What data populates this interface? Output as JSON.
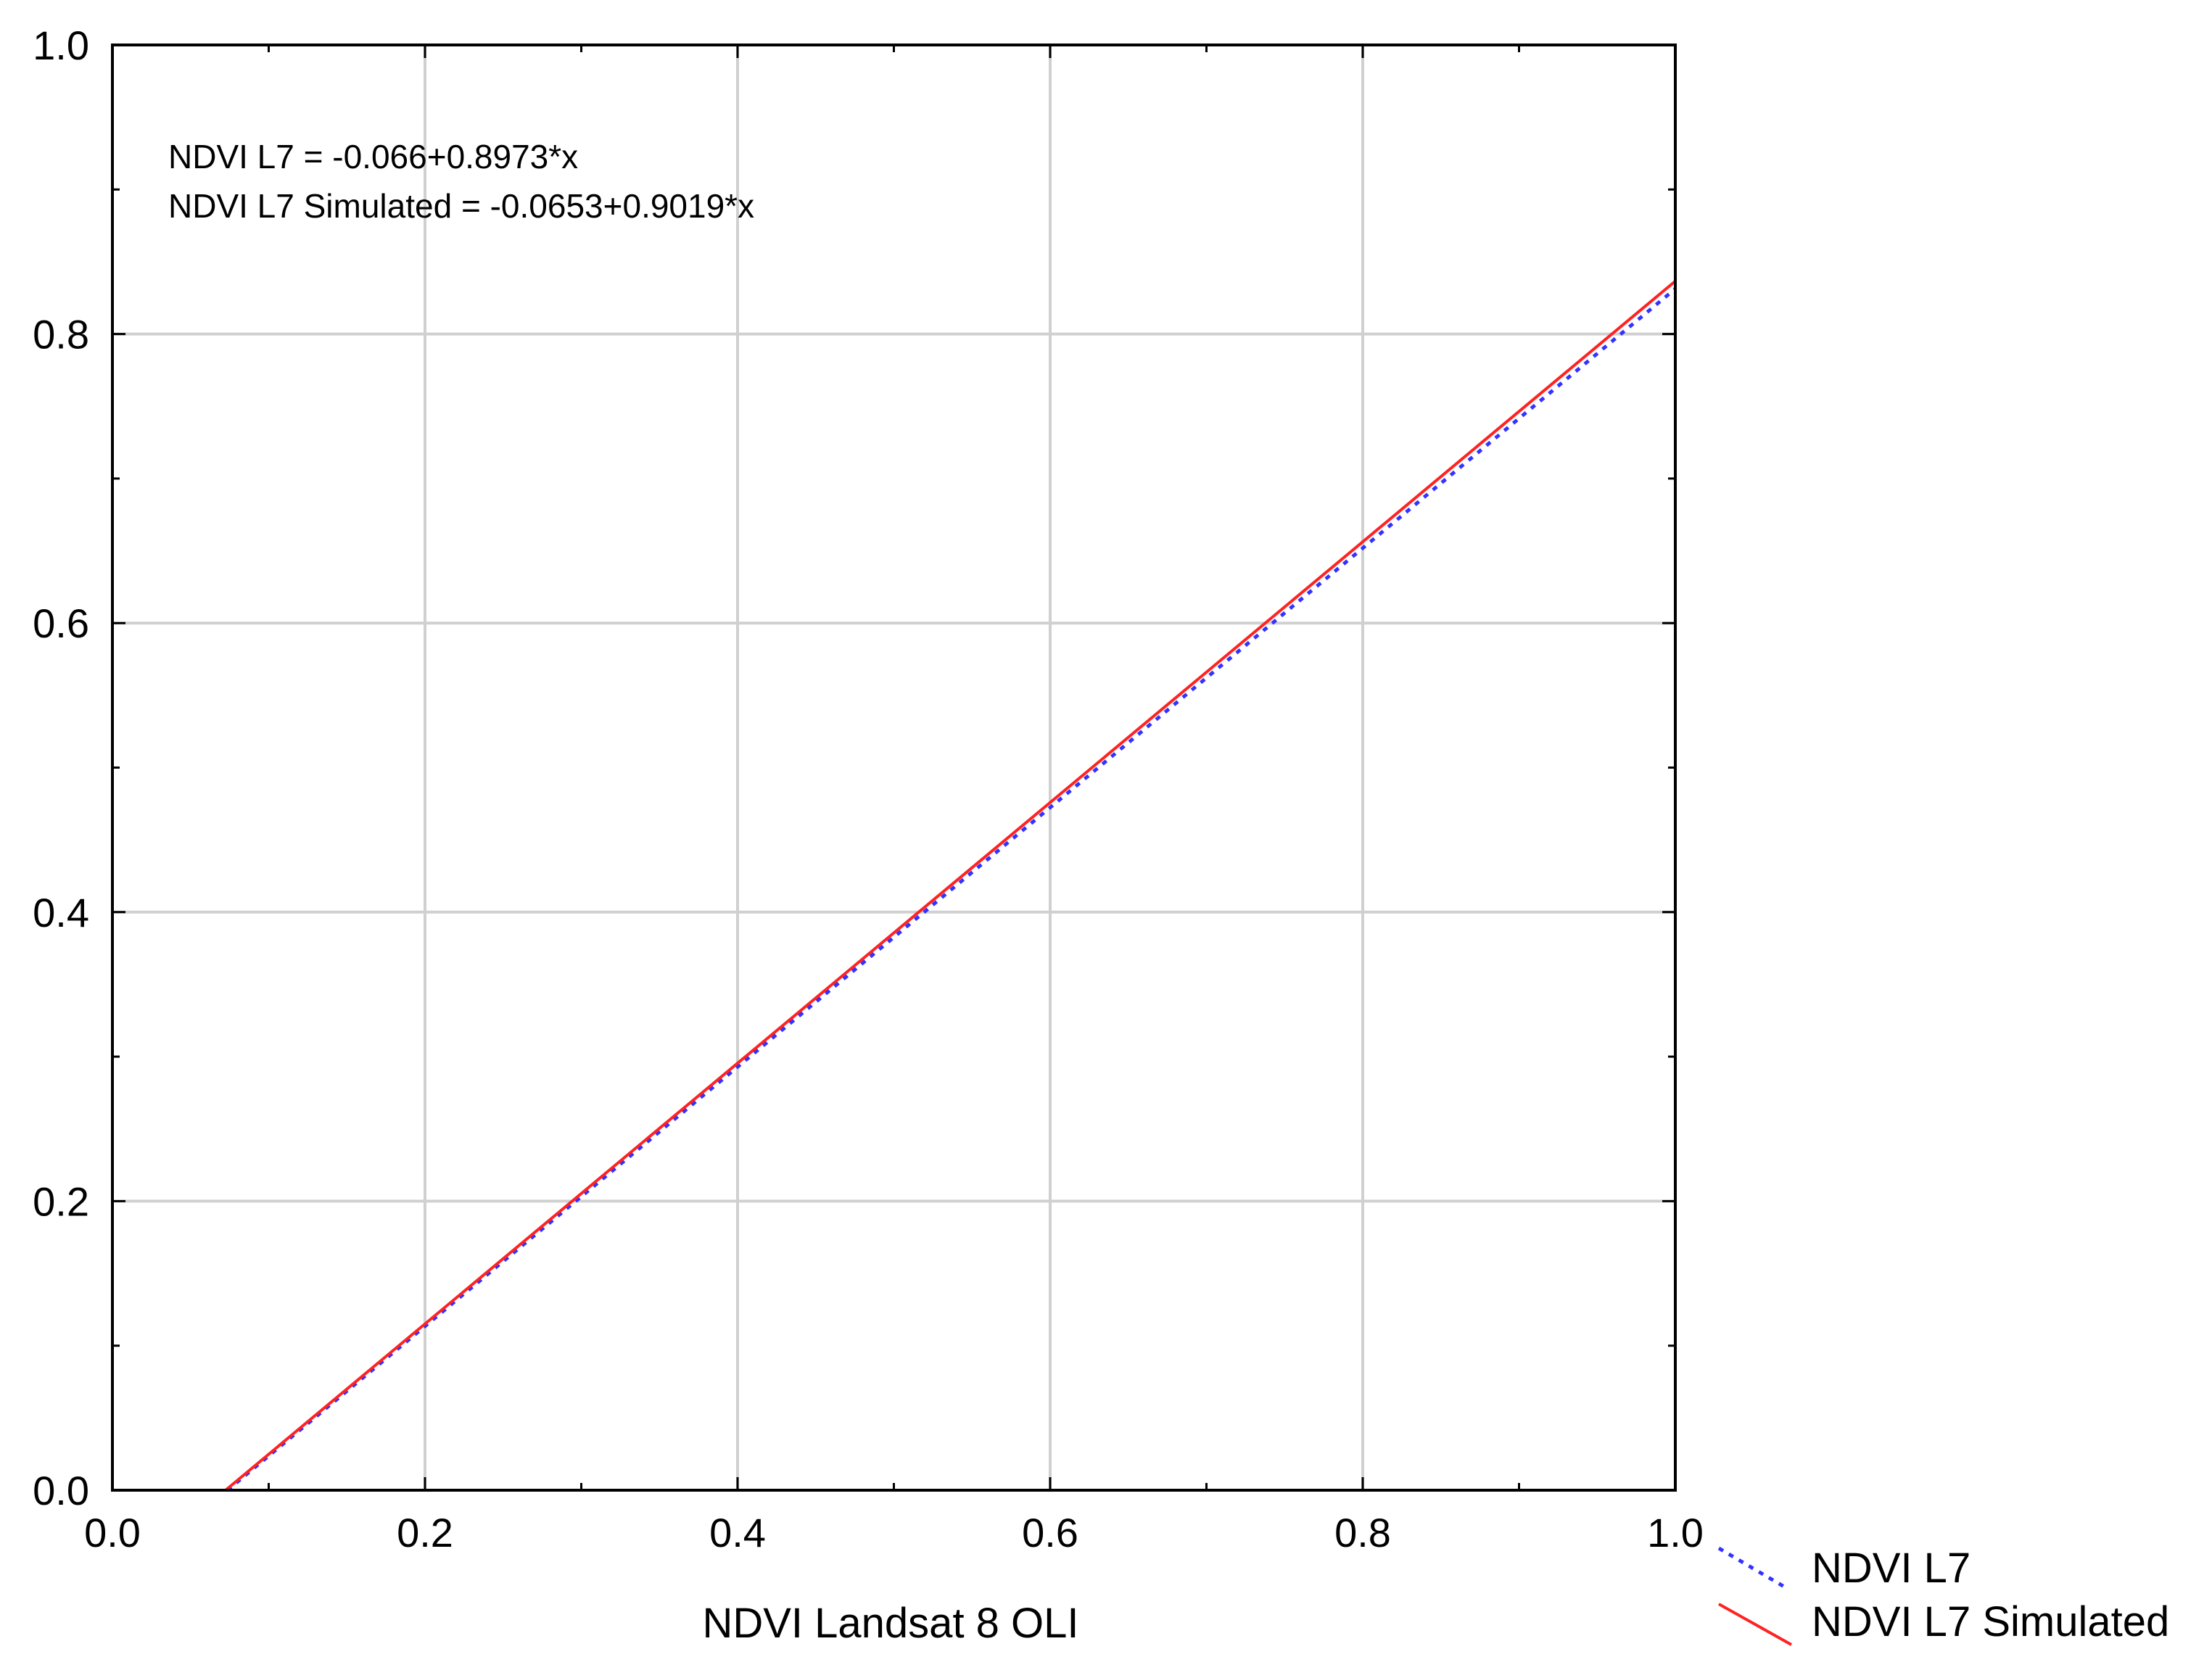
{
  "chart_data": {
    "type": "line",
    "xlabel": "NDVI Landsat 8 OLI",
    "ylabel": "",
    "xlim": [
      0.0,
      1.0
    ],
    "ylim": [
      0.0,
      1.0
    ],
    "x_ticks": [
      "0.0",
      "0.2",
      "0.4",
      "0.6",
      "0.8",
      "1.0"
    ],
    "y_ticks": [
      "0.0",
      "0.2",
      "0.4",
      "0.6",
      "0.8",
      "1.0"
    ],
    "x_tick_values": [
      0.0,
      0.2,
      0.4,
      0.6,
      0.8,
      1.0
    ],
    "y_tick_values": [
      0.0,
      0.2,
      0.4,
      0.6,
      0.8,
      1.0
    ],
    "x_minor_tick_values": [
      0.1,
      0.3,
      0.5,
      0.7,
      0.9
    ],
    "y_minor_tick_values": [
      0.1,
      0.3,
      0.5,
      0.7,
      0.9
    ],
    "grid": true,
    "legend_position": "bottom-right, outside plot",
    "annotations": [
      "NDVI L7 = -0.066+0.8973*x",
      "NDVI L7 Simulated = -0.0653+0.9019*x"
    ],
    "series": [
      {
        "name": "NDVI L7",
        "intercept": -0.066,
        "slope": 0.8973,
        "color": "#3333ff",
        "line_style": "dotted"
      },
      {
        "name": "NDVI L7 Simulated",
        "intercept": -0.0653,
        "slope": 0.9019,
        "color": "#ff2222",
        "line_style": "solid"
      }
    ]
  }
}
